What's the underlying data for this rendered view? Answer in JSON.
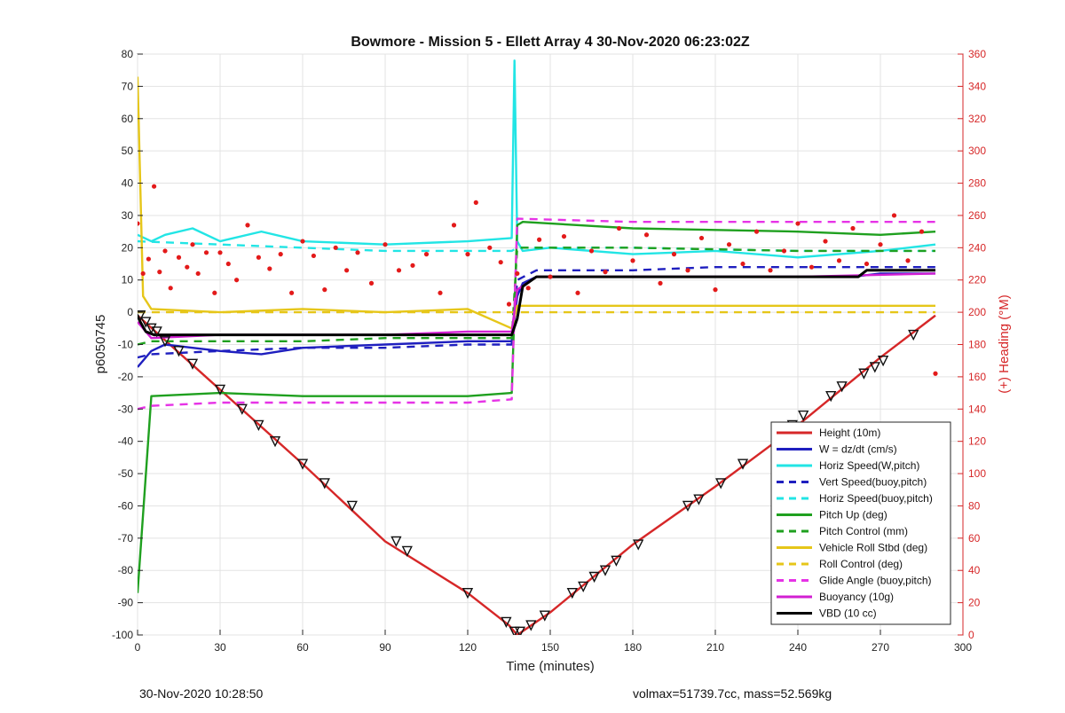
{
  "chart_data": {
    "type": "line",
    "title": "Bowmore - Mission 5 - Ellett Array 4 30-Nov-2020 06:23:02Z",
    "xlabel": "Time (minutes)",
    "ylabel_left": "p6050745",
    "ylabel_right": "(+) Heading (°M)",
    "xlim": [
      0,
      300
    ],
    "ylim_left": [
      -100,
      80
    ],
    "ylim_right": [
      0,
      360
    ],
    "x_ticks": [
      0,
      30,
      60,
      90,
      120,
      150,
      180,
      210,
      240,
      270,
      300
    ],
    "y_ticks_left": [
      80,
      70,
      60,
      50,
      40,
      30,
      20,
      10,
      0,
      -10,
      -20,
      -30,
      -40,
      -50,
      -60,
      -70,
      -80,
      -90,
      -100
    ],
    "y_ticks_right": [
      360,
      340,
      320,
      300,
      280,
      260,
      240,
      220,
      200,
      180,
      160,
      140,
      120,
      100,
      80,
      60,
      40,
      20,
      0
    ],
    "grid": true,
    "legend_position": "bottom-right",
    "series": [
      {
        "name": "Height (10m)",
        "color": "#d62728",
        "style": "solid",
        "x": [
          0,
          30,
          60,
          90,
          120,
          135,
          138,
          150,
          180,
          210,
          240,
          270,
          290
        ],
        "y": [
          -1,
          -24,
          -47,
          -71,
          -87,
          -97,
          -100,
          -93,
          -72,
          -54,
          -35,
          -14,
          -1
        ]
      },
      {
        "name": "W = dz/dt (cm/s)",
        "color": "#1f1fbf",
        "style": "solid",
        "x": [
          0,
          5,
          10,
          20,
          30,
          45,
          60,
          90,
          120,
          136,
          138,
          140,
          145,
          180,
          220,
          260,
          270,
          290
        ],
        "y": [
          -17,
          -12,
          -10,
          -11,
          -12,
          -13,
          -11,
          -10,
          -9,
          -9,
          5,
          9,
          11,
          11,
          11,
          11,
          12,
          12
        ]
      },
      {
        "name": "Horiz Speed(W,pitch)",
        "color": "#22e5e5",
        "style": "solid",
        "x": [
          0,
          5,
          10,
          20,
          30,
          45,
          60,
          90,
          120,
          136,
          137,
          138,
          140,
          150,
          180,
          210,
          240,
          270,
          290
        ],
        "y": [
          24,
          22,
          24,
          26,
          22,
          25,
          22,
          21,
          22,
          23,
          78,
          22,
          19,
          20,
          18,
          19,
          17,
          19,
          21
        ]
      },
      {
        "name": "Vert Speed(buoy,pitch)",
        "color": "#1f1fbf",
        "style": "dashed",
        "x": [
          0,
          5,
          30,
          60,
          90,
          120,
          136,
          138,
          145,
          180,
          210,
          240,
          270,
          290
        ],
        "y": [
          -14,
          -13,
          -12,
          -11,
          -11,
          -10,
          -10,
          10,
          13,
          13,
          14,
          14,
          14,
          14
        ]
      },
      {
        "name": "Horiz Speed(buoy,pitch)",
        "color": "#22e5e5",
        "style": "dashed",
        "x": [
          0,
          30,
          60,
          90,
          120,
          136,
          138,
          180,
          240,
          290
        ],
        "y": [
          22,
          21,
          20,
          19,
          19,
          19,
          20,
          20,
          19,
          19
        ]
      },
      {
        "name": "Pitch Up (deg)",
        "color": "#1fa01f",
        "style": "solid",
        "x": [
          0,
          5,
          30,
          60,
          90,
          120,
          136,
          138,
          140,
          180,
          240,
          270,
          290
        ],
        "y": [
          -87,
          -26,
          -25,
          -26,
          -26,
          -26,
          -25,
          27,
          28,
          26,
          25,
          24,
          25
        ]
      },
      {
        "name": "Pitch Control (mm)",
        "color": "#1fa01f",
        "style": "dashed",
        "x": [
          0,
          5,
          30,
          60,
          90,
          120,
          136,
          138,
          180,
          240,
          290
        ],
        "y": [
          -10,
          -9,
          -9,
          -9,
          -8,
          -8,
          -8,
          20,
          20,
          19,
          19
        ]
      },
      {
        "name": "Vehicle Roll Stbd (deg)",
        "color": "#e6c619",
        "style": "solid",
        "x": [
          0,
          2,
          5,
          30,
          60,
          90,
          120,
          136,
          138,
          180,
          240,
          270,
          290
        ],
        "y": [
          73,
          5,
          1,
          0,
          1,
          0,
          1,
          -5,
          2,
          2,
          2,
          2,
          2
        ]
      },
      {
        "name": "Roll Control (deg)",
        "color": "#e6c619",
        "style": "dashed",
        "x": [
          0,
          5,
          30,
          60,
          90,
          120,
          136,
          138,
          180,
          240,
          270,
          290
        ],
        "y": [
          0,
          0,
          0,
          0,
          0,
          0,
          0,
          0,
          0,
          0,
          0,
          0
        ]
      },
      {
        "name": "Glide Angle (buoy,pitch)",
        "color": "#e633e6",
        "style": "dashed",
        "x": [
          0,
          5,
          30,
          60,
          90,
          120,
          136,
          138,
          180,
          240,
          270,
          290
        ],
        "y": [
          -30,
          -29,
          -28,
          -28,
          -28,
          -28,
          -27,
          29,
          28,
          28,
          28,
          28
        ]
      },
      {
        "name": "Buoyancy (10g)",
        "color": "#d21fd2",
        "style": "solid",
        "x": [
          0,
          5,
          30,
          60,
          90,
          120,
          136,
          138,
          145,
          180,
          240,
          290
        ],
        "y": [
          -3,
          -8,
          -7,
          -7,
          -7,
          -6,
          -6,
          7,
          11,
          11,
          11,
          12
        ]
      },
      {
        "name": "VBD (10 cc)",
        "color": "#000000",
        "style": "solid",
        "x": [
          0,
          1,
          3,
          6,
          30,
          60,
          90,
          120,
          136,
          138,
          140,
          145,
          180,
          210,
          240,
          262,
          265,
          290
        ],
        "y": [
          -1,
          -3,
          -6,
          -7,
          -7,
          -7,
          -7,
          -7,
          -7,
          -2,
          8,
          11,
          11,
          11,
          11,
          11,
          13,
          13
        ]
      }
    ],
    "heading_points": {
      "color": "#e31a1a",
      "x": [
        0,
        2,
        4,
        6,
        8,
        10,
        12,
        15,
        18,
        20,
        22,
        25,
        28,
        30,
        33,
        36,
        40,
        44,
        48,
        52,
        56,
        60,
        64,
        68,
        72,
        76,
        80,
        85,
        90,
        95,
        100,
        105,
        110,
        115,
        120,
        123,
        128,
        132,
        135,
        138,
        142,
        146,
        150,
        155,
        160,
        165,
        170,
        175,
        180,
        185,
        190,
        195,
        200,
        205,
        210,
        215,
        220,
        225,
        230,
        235,
        240,
        245,
        250,
        255,
        260,
        265,
        270,
        275,
        280,
        285,
        290
      ],
      "y": [
        255,
        224,
        233,
        278,
        225,
        238,
        215,
        234,
        228,
        242,
        224,
        237,
        212,
        237,
        230,
        220,
        254,
        234,
        227,
        236,
        212,
        244,
        235,
        214,
        240,
        226,
        237,
        218,
        242,
        226,
        229,
        236,
        212,
        254,
        236,
        268,
        240,
        231,
        205,
        224,
        215,
        245,
        222,
        247,
        212,
        238,
        225,
        252,
        232,
        248,
        218,
        236,
        226,
        246,
        214,
        242,
        230,
        250,
        226,
        238,
        255,
        228,
        244,
        232,
        252,
        230,
        242,
        260,
        232,
        250,
        162
      ]
    },
    "descent_markers": {
      "x": [
        1,
        3,
        5,
        7,
        10,
        15,
        20,
        30,
        38,
        44,
        50,
        60,
        68,
        78,
        94,
        98,
        120,
        134,
        137,
        139,
        143,
        148,
        158,
        162,
        166,
        170,
        174,
        182,
        200,
        204,
        212,
        220,
        238,
        242,
        252,
        256,
        264,
        268,
        271,
        282
      ],
      "y": [
        -1,
        -3,
        -5,
        -6,
        -9,
        -12,
        -16,
        -24,
        -30,
        -35,
        -40,
        -47,
        -53,
        -60,
        -71,
        -74,
        -87,
        -96,
        -99,
        -99,
        -97,
        -94,
        -87,
        -85,
        -82,
        -80,
        -77,
        -72,
        -60,
        -58,
        -53,
        -47,
        -35,
        -32,
        -26,
        -23,
        -19,
        -17,
        -15,
        -7
      ]
    }
  },
  "footer": {
    "timestamp": "30-Nov-2020 10:28:50",
    "stats": "volmax=51739.7cc, mass=52.569kg"
  }
}
